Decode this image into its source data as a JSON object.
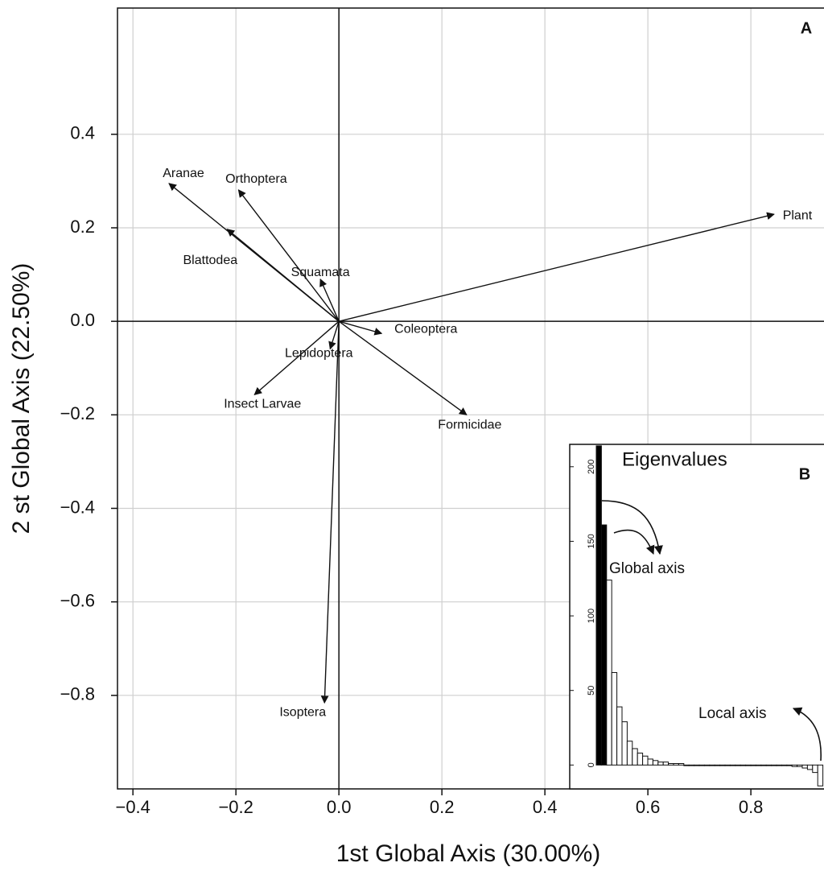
{
  "chart_data": [
    {
      "type": "biplot",
      "panel_label": "A",
      "x_label": "1st Global Axis (30.00%)",
      "y_label": "2 st Global Axis (22.50%)",
      "xlim": [
        -0.43,
        0.942
      ],
      "ylim": [
        -1.0,
        0.67
      ],
      "xticks": [
        {
          "value": -0.4,
          "label": "−0.4"
        },
        {
          "value": -0.2,
          "label": "−0.2"
        },
        {
          "value": 0.0,
          "label": "0.0"
        },
        0.2,
        0.4,
        0.6,
        0.8
      ],
      "yticks": [
        {
          "value": -0.8,
          "label": "−0.8"
        },
        {
          "value": -0.6,
          "label": "−0.6"
        },
        {
          "value": -0.4,
          "label": "−0.4"
        },
        {
          "value": -0.2,
          "label": "−0.2"
        },
        {
          "value": 0.0,
          "label": "0.0"
        },
        0.2,
        0.4
      ],
      "grid": true,
      "color": "#111111",
      "vectors": [
        {
          "label": "Plant",
          "x": 0.845,
          "y": 0.229
        },
        {
          "label": "Aranae",
          "x": -0.33,
          "y": 0.295
        },
        {
          "label": "Orthoptera",
          "x": -0.195,
          "y": 0.281
        },
        {
          "label": "Blattodea",
          "x": -0.217,
          "y": 0.197
        },
        {
          "label": "Squamata",
          "x": -0.036,
          "y": 0.09
        },
        {
          "label": "Coleoptera",
          "x": 0.083,
          "y": -0.026
        },
        {
          "label": "Formicidae",
          "x": 0.248,
          "y": -0.2
        },
        {
          "label": "Lepidoptera",
          "x": -0.017,
          "y": -0.059
        },
        {
          "label": "Insect Larvae",
          "x": -0.164,
          "y": -0.157
        },
        {
          "label": "Isoptera",
          "x": -0.028,
          "y": -0.816
        }
      ]
    },
    {
      "type": "bar",
      "title": "Eigenvalues",
      "panel_label": "B",
      "annotations": [
        "Global axis",
        "Local axis"
      ],
      "ylim": [
        -16,
        215
      ],
      "yticks": [
        0,
        50,
        100,
        150,
        200
      ],
      "values": [
        214,
        161,
        124,
        62,
        39,
        29,
        16,
        11,
        8,
        6,
        4,
        3,
        2,
        2,
        1,
        1,
        1,
        0,
        0,
        0,
        0,
        0,
        0,
        0,
        0,
        0,
        0,
        0,
        0,
        0,
        0,
        0,
        0,
        0,
        0,
        0,
        0,
        0,
        -1,
        -1,
        -2,
        -3,
        -5,
        -14
      ],
      "colors": [
        "#000000",
        "#000000",
        "#ffffff",
        "#ffffff",
        "#ffffff",
        "#ffffff",
        "#ffffff",
        "#ffffff",
        "#ffffff",
        "#ffffff",
        "#ffffff",
        "#ffffff",
        "#ffffff",
        "#ffffff",
        "#ffffff",
        "#ffffff",
        "#ffffff",
        "#ffffff",
        "#ffffff",
        "#ffffff",
        "#ffffff",
        "#ffffff",
        "#ffffff",
        "#ffffff",
        "#ffffff",
        "#ffffff",
        "#ffffff",
        "#ffffff",
        "#ffffff",
        "#ffffff",
        "#ffffff",
        "#ffffff",
        "#ffffff",
        "#ffffff",
        "#ffffff",
        "#ffffff",
        "#ffffff",
        "#ffffff",
        "#ffffff",
        "#ffffff",
        "#ffffff",
        "#ffffff",
        "#ffffff",
        "#ffffff"
      ]
    }
  ]
}
